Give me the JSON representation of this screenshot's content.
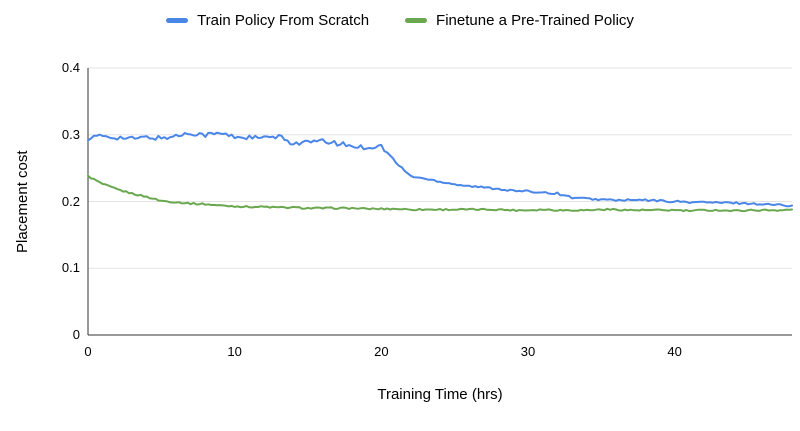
{
  "page": {
    "background": "#ffffff"
  },
  "chart_data": {
    "type": "line",
    "title": "",
    "xlabel": "Training Time (hrs)",
    "ylabel": "Placement cost",
    "xlim": [
      0,
      48
    ],
    "ylim": [
      0,
      0.4
    ],
    "grid": "horizontal",
    "legend_position": "top-center",
    "grid_color": "#e3e3e3",
    "axis_color": "#333333",
    "xticks": {
      "values": [
        0,
        10,
        20,
        30,
        40
      ],
      "labels": [
        "0",
        "10",
        "20",
        "30",
        "40"
      ]
    },
    "yticks": {
      "values": [
        0,
        0.1,
        0.2,
        0.3,
        0.4
      ],
      "labels": [
        "0",
        "0.1",
        "0.2",
        "0.3",
        "0.4"
      ]
    },
    "series": [
      {
        "name": "Train Policy From Scratch",
        "color": "#4a86e8",
        "x": [
          0,
          1,
          2,
          3,
          4,
          5,
          6,
          7,
          8,
          9,
          10,
          11,
          12,
          13,
          14,
          15,
          16,
          17,
          18,
          19,
          20,
          21,
          22,
          23,
          24,
          25,
          26,
          27,
          28,
          29,
          30,
          31,
          32,
          33,
          34,
          35,
          36,
          37,
          38,
          39,
          40,
          41,
          42,
          43,
          44,
          45,
          46,
          47,
          48
        ],
        "y": [
          0.295,
          0.298,
          0.296,
          0.294,
          0.296,
          0.295,
          0.298,
          0.303,
          0.3,
          0.302,
          0.297,
          0.296,
          0.295,
          0.297,
          0.287,
          0.289,
          0.29,
          0.287,
          0.283,
          0.281,
          0.283,
          0.258,
          0.238,
          0.234,
          0.23,
          0.226,
          0.223,
          0.221,
          0.219,
          0.216,
          0.215,
          0.214,
          0.212,
          0.206,
          0.204,
          0.203,
          0.202,
          0.202,
          0.202,
          0.201,
          0.2,
          0.199,
          0.199,
          0.198,
          0.198,
          0.197,
          0.196,
          0.195,
          0.194
        ]
      },
      {
        "name": "Finetune a Pre-Trained Policy",
        "color": "#6aa84f",
        "x": [
          0,
          1,
          2,
          3,
          4,
          5,
          6,
          7,
          8,
          9,
          10,
          11,
          12,
          13,
          14,
          15,
          16,
          17,
          18,
          19,
          20,
          21,
          22,
          23,
          24,
          25,
          26,
          27,
          28,
          29,
          30,
          31,
          32,
          33,
          34,
          35,
          36,
          37,
          38,
          39,
          40,
          41,
          42,
          43,
          44,
          45,
          46,
          47,
          48
        ],
        "y": [
          0.238,
          0.226,
          0.218,
          0.212,
          0.207,
          0.201,
          0.199,
          0.197,
          0.196,
          0.194,
          0.193,
          0.192,
          0.192,
          0.191,
          0.191,
          0.19,
          0.19,
          0.19,
          0.19,
          0.189,
          0.189,
          0.189,
          0.188,
          0.188,
          0.188,
          0.188,
          0.188,
          0.188,
          0.188,
          0.187,
          0.187,
          0.188,
          0.187,
          0.187,
          0.187,
          0.188,
          0.188,
          0.187,
          0.187,
          0.187,
          0.187,
          0.186,
          0.187,
          0.187,
          0.186,
          0.187,
          0.187,
          0.187,
          0.188
        ]
      }
    ]
  }
}
